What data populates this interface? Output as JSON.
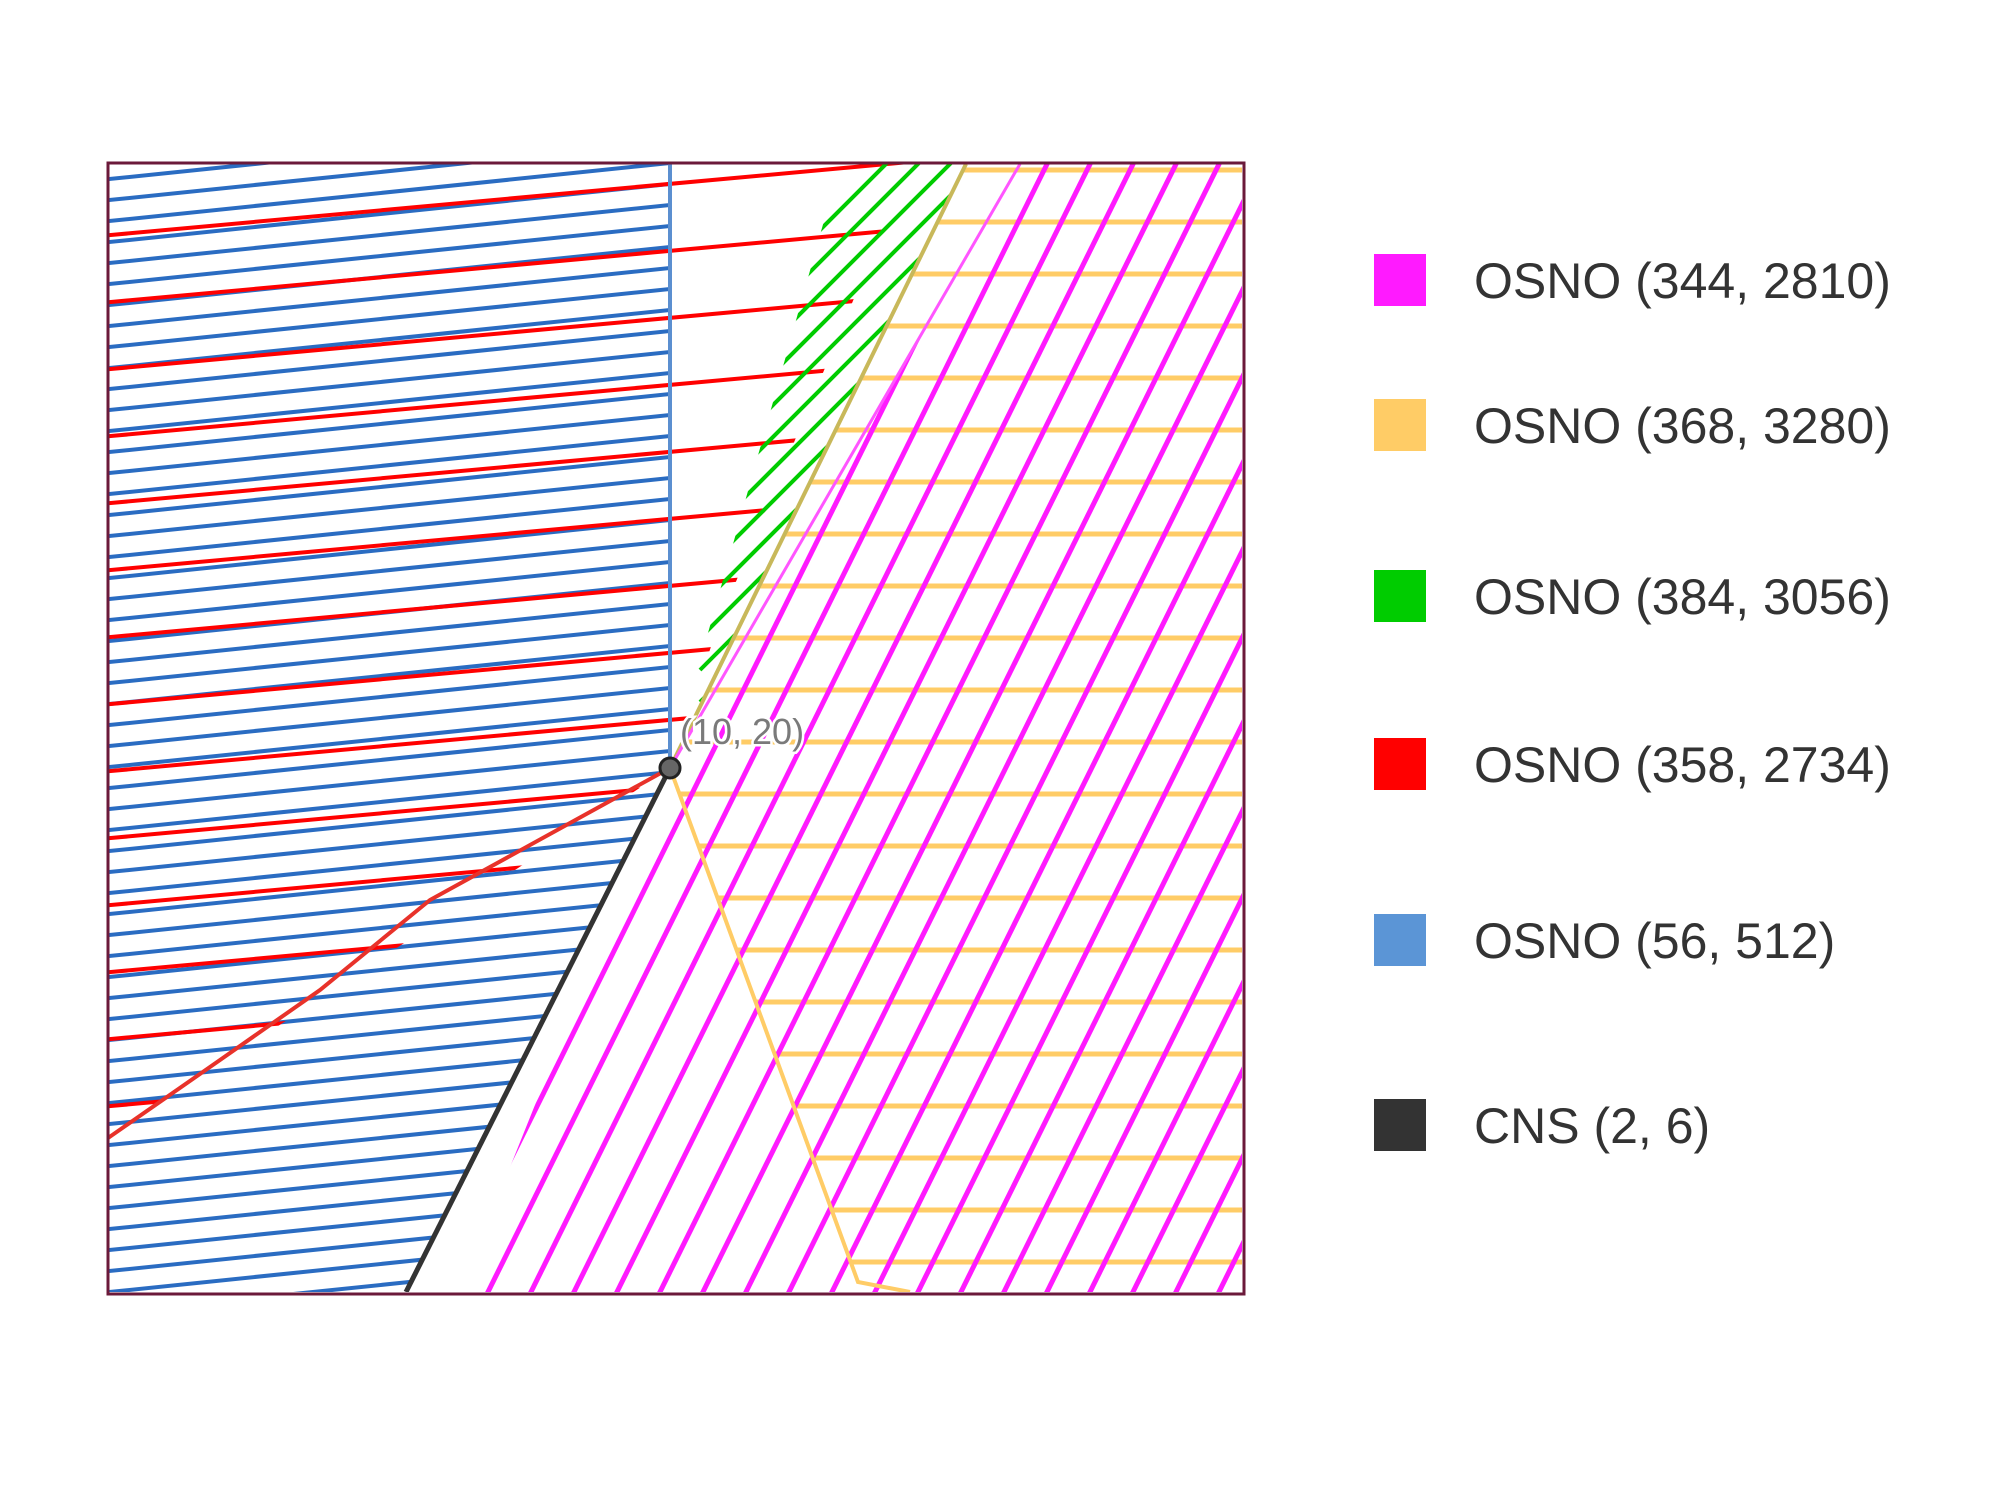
{
  "diagram": {
    "point_label": "(10, 20)",
    "frame_color": "#6b1a3a",
    "point_fill": "#666666",
    "point_stroke": "#222222"
  },
  "legend": [
    {
      "label": "OSNO (344, 2810)",
      "color": "#ff1aff"
    },
    {
      "label": "OSNO (368, 3280)",
      "color": "#ffcc66"
    },
    {
      "label": "OSNO (384, 3056)",
      "color": "#00cc00"
    },
    {
      "label": "OSNO (358, 2734)",
      "color": "#ff0000"
    },
    {
      "label": "OSNO (56, 512)",
      "color": "#5b95d6"
    },
    {
      "label": "CNS (2, 6)",
      "color": "#333333"
    }
  ]
}
